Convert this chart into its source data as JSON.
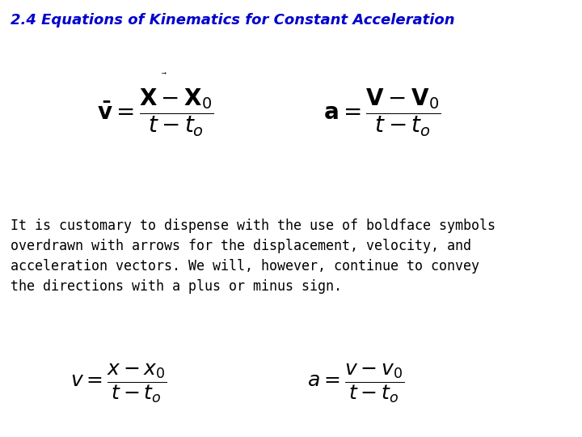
{
  "title": "2.4 Equations of Kinematics for Constant Acceleration",
  "title_color": "#0000CC",
  "title_fontsize": 13,
  "title_italic": true,
  "bg_color": "#FFFFFF",
  "paragraph_text": "It is customary to dispense with the use of boldface symbols\noverdrawn with arrows for the displacement, velocity, and\nacceleration vectors. We will, however, continue to convey\nthe directions with a plus or minus sign.",
  "paragraph_fontsize": 12,
  "eq1_bold_lhs": "$\\mathbf{\\bar{v}} = \\dfrac{\\mathbf{X} - \\mathbf{X}_0}{t - t_o}$",
  "eq2_bold_lhs": "$\\mathbf{a} = \\dfrac{\\mathbf{V} - \\mathbf{V}_0}{t - t_o}$",
  "eq1_plain": "$v = \\dfrac{x - x_0}{t - t_o}$",
  "eq2_plain": "$a = \\dfrac{v - v_0}{t - t_o}$",
  "eq_fontsize_bold": 18,
  "eq_fontsize_plain": 16,
  "text_color": "#000000"
}
